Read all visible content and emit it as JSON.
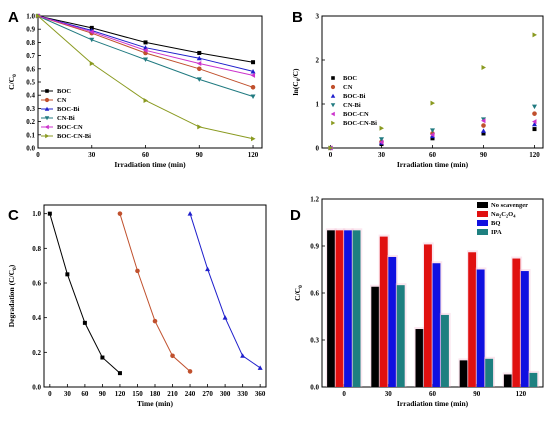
{
  "chart_data": [
    {
      "id": "A",
      "type": "line",
      "panel_label": "A",
      "xlabel": "Irradiation time (min)",
      "ylabel": "C/C0",
      "ylabel_main": "C/C",
      "ylabel_sub": "0",
      "xlim": [
        0,
        125
      ],
      "ylim": [
        0,
        1.0
      ],
      "xticks": [
        0,
        30,
        60,
        90,
        120
      ],
      "yticks": [
        0,
        0.1,
        0.2,
        0.3,
        0.4,
        0.5,
        0.6,
        0.7,
        0.8,
        0.9,
        1.0
      ],
      "ytick_labels": [
        "0.0",
        "0.1",
        "0.2",
        "0.3",
        "0.4",
        "0.5",
        "0.6",
        "0.7",
        "0.8",
        "0.9",
        "1.0"
      ],
      "legend_position": "bottom-left",
      "x": [
        0,
        30,
        60,
        90,
        120
      ],
      "series": [
        {
          "name": "BOC",
          "color": "#000000",
          "marker": "square",
          "values": [
            1.0,
            0.91,
            0.8,
            0.72,
            0.65
          ]
        },
        {
          "name": "CN",
          "color": "#c0502d",
          "marker": "circle",
          "values": [
            1.0,
            0.87,
            0.72,
            0.6,
            0.46
          ]
        },
        {
          "name": "BOC-Bi",
          "color": "#1f1fcc",
          "marker": "triangle-up",
          "values": [
            1.0,
            0.89,
            0.76,
            0.68,
            0.58
          ]
        },
        {
          "name": "CN-Bi",
          "color": "#207a80",
          "marker": "triangle-down",
          "values": [
            1.0,
            0.82,
            0.67,
            0.52,
            0.39
          ]
        },
        {
          "name": "BOC-CN",
          "color": "#cc33cc",
          "marker": "triangle-left",
          "values": [
            1.0,
            0.88,
            0.74,
            0.64,
            0.55
          ]
        },
        {
          "name": "BOC-CN-Bi",
          "color": "#8a9a20",
          "marker": "triangle-right",
          "values": [
            1.0,
            0.64,
            0.36,
            0.16,
            0.07
          ]
        }
      ]
    },
    {
      "id": "B",
      "type": "scatter",
      "panel_label": "B",
      "xlabel": "Irradiation time (min)",
      "ylabel": "ln(C0/C)",
      "ylabel_pre": "ln(C",
      "ylabel_sub": "0",
      "ylabel_post": "/C)",
      "xlim": [
        -5,
        125
      ],
      "ylim": [
        0,
        3
      ],
      "xticks": [
        0,
        30,
        60,
        90,
        120
      ],
      "yticks": [
        0,
        1,
        2,
        3
      ],
      "legend_position": "left",
      "x": [
        0,
        30,
        60,
        90,
        120
      ],
      "series": [
        {
          "name": "BOC",
          "color": "#000000",
          "marker": "square",
          "values": [
            0,
            0.09,
            0.22,
            0.33,
            0.43
          ]
        },
        {
          "name": "CN",
          "color": "#c0502d",
          "marker": "circle",
          "values": [
            0,
            0.14,
            0.33,
            0.51,
            0.78
          ]
        },
        {
          "name": "BOC-Bi",
          "color": "#1f1fcc",
          "marker": "triangle-up",
          "values": [
            0,
            0.12,
            0.27,
            0.39,
            0.54
          ]
        },
        {
          "name": "CN-Bi",
          "color": "#207a80",
          "marker": "triangle-down",
          "values": [
            0,
            0.2,
            0.4,
            0.65,
            0.94
          ]
        },
        {
          "name": "BOC-CN",
          "color": "#cc33cc",
          "marker": "triangle-left",
          "values": [
            0,
            0.13,
            0.3,
            0.62,
            0.6
          ]
        },
        {
          "name": "BOC-CN-Bi",
          "color": "#8a9a20",
          "marker": "triangle-right",
          "values": [
            0,
            0.45,
            1.02,
            1.83,
            2.57
          ]
        }
      ]
    },
    {
      "id": "C",
      "type": "line",
      "panel_label": "C",
      "xlabel": "Time (min)",
      "ylabel": "Degradation (C/C0)",
      "ylabel_main": "Degradation (C/C",
      "ylabel_sub": "0",
      "ylabel_post": ")",
      "xlim": [
        -10,
        370
      ],
      "ylim": [
        0,
        1.05
      ],
      "xticks": [
        0,
        30,
        60,
        90,
        120,
        150,
        180,
        210,
        240,
        270,
        300,
        330,
        360
      ],
      "yticks": [
        0,
        0.2,
        0.4,
        0.6,
        0.8,
        1.0
      ],
      "ytick_labels": [
        "0.0",
        "0.2",
        "0.4",
        "0.6",
        "0.8",
        "1.0"
      ],
      "series": [
        {
          "color": "#000000",
          "marker": "square",
          "x": [
            0,
            30,
            60,
            90,
            120
          ],
          "values": [
            1.0,
            0.65,
            0.37,
            0.17,
            0.08
          ]
        },
        {
          "color": "#c0502d",
          "marker": "circle",
          "x": [
            120,
            150,
            180,
            210,
            240
          ],
          "values": [
            1.0,
            0.67,
            0.38,
            0.18,
            0.09
          ]
        },
        {
          "color": "#1f1fcc",
          "marker": "triangle-up",
          "x": [
            240,
            270,
            300,
            330,
            360
          ],
          "values": [
            1.0,
            0.68,
            0.4,
            0.18,
            0.11
          ]
        }
      ]
    },
    {
      "id": "D",
      "type": "bar",
      "panel_label": "D",
      "xlabel": "Irradiation time (min)",
      "ylabel": "C/C0",
      "ylabel_main": "C/C",
      "ylabel_sub": "0",
      "ylim": [
        0,
        1.2
      ],
      "yticks": [
        0,
        0.3,
        0.6,
        0.9,
        1.2
      ],
      "ytick_labels": [
        "0.0",
        "0.3",
        "0.6",
        "0.9",
        "1.2"
      ],
      "categories": [
        "0",
        "30",
        "60",
        "90",
        "120"
      ],
      "legend_position": "top-right",
      "series": [
        {
          "name": "No scavenger",
          "color": "#000000",
          "values": [
            1.0,
            0.64,
            0.37,
            0.17,
            0.08
          ]
        },
        {
          "name": "Na2C2O4",
          "name_parts": [
            "Na",
            "2",
            "C",
            "2",
            "O",
            "4"
          ],
          "color": "#e01010",
          "values": [
            1.0,
            0.96,
            0.91,
            0.86,
            0.82
          ]
        },
        {
          "name": "BQ",
          "color": "#1010e0",
          "values": [
            1.0,
            0.83,
            0.79,
            0.75,
            0.74
          ]
        },
        {
          "name": "IPA",
          "color": "#1e8080",
          "values": [
            1.0,
            0.65,
            0.46,
            0.18,
            0.09
          ]
        }
      ]
    }
  ]
}
